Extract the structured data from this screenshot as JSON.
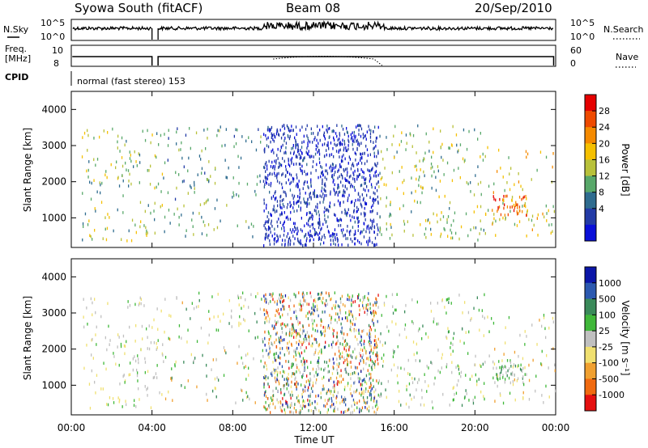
{
  "header": {
    "station": "Syowa South (fitACF)",
    "beam": "Beam 08",
    "date": "20/Sep/2010"
  },
  "panels": {
    "nsky_label": "N.Sky",
    "nsky_ticks": [
      "10^5",
      "10^0"
    ],
    "nsearch_label": "N.Search",
    "nsearch_ticks": [
      "10^5",
      "10^0"
    ],
    "freq_label_1": "Freq.",
    "freq_label_2": "[MHz]",
    "freq_ticks": [
      "10",
      "8"
    ],
    "nave_label": "Nave",
    "nave_ticks": [
      "60",
      "0"
    ],
    "cpid_label": "CPID",
    "cpid_text": "normal (fast stereo) 153"
  },
  "axes": {
    "ylabel": "Slant Range [km]",
    "yticks": [
      "4000",
      "3000",
      "2000",
      "1000"
    ],
    "xlabel": "Time UT",
    "xticks": [
      "00:00",
      "04:00",
      "08:00",
      "12:00",
      "16:00",
      "20:00",
      "00:00"
    ]
  },
  "colorbars": {
    "power": {
      "label": "Power [dB]",
      "ticks": [
        "28",
        "24",
        "20",
        "16",
        "12",
        "8",
        "4"
      ],
      "colors": [
        "#e50000",
        "#ee4a00",
        "#f58a00",
        "#f5c000",
        "#b8c13a",
        "#58a86a",
        "#2f6c8f",
        "#233ba6",
        "#0a10d8"
      ]
    },
    "velocity": {
      "label": "Velocity [m s⁻¹]",
      "ticks": [
        "1000",
        "500",
        "100",
        "25",
        "-25",
        "-100",
        "-500",
        "-1000"
      ],
      "colors": [
        "#0b16a8",
        "#2c59b0",
        "#3a8a5a",
        "#40b83a",
        "#c0c0c0",
        "#f0e070",
        "#f0a030",
        "#f06a10",
        "#e51010"
      ]
    }
  },
  "chart_data": [
    {
      "type": "line",
      "title": "",
      "series": [
        {
          "name": "N.Sky"
        },
        {
          "name": "N.Search"
        }
      ],
      "xlim": [
        0,
        24
      ],
      "note_scale": "log",
      "ylim_exponent": [
        0,
        5
      ]
    },
    {
      "type": "line",
      "series": [
        {
          "name": "Freq.",
          "approx_value": 9.5
        },
        {
          "name": "Nave"
        }
      ],
      "xlim": [
        0,
        24
      ]
    },
    {
      "type": "heatmap",
      "xlabel": "Time UT",
      "ylabel": "Slant Range [km]",
      "xlim": [
        0,
        24
      ],
      "ylim": [
        180,
        4500
      ],
      "colorbar": "Power [dB]",
      "value_range": [
        4,
        28
      ],
      "regions": [
        {
          "t": [
            0.5,
            4.5
          ],
          "range_km": [
            400,
            3500
          ],
          "density": 0.5,
          "value": [
            10,
            20
          ]
        },
        {
          "t": [
            4.5,
            9.5
          ],
          "range_km": [
            500,
            3600
          ],
          "density": 0.4,
          "value": [
            8,
            16
          ]
        },
        {
          "t": [
            9.5,
            15.2
          ],
          "range_km": [
            200,
            3600
          ],
          "density": 2.6,
          "value": [
            3,
            9
          ]
        },
        {
          "t": [
            15.2,
            20.5
          ],
          "range_km": [
            400,
            3600
          ],
          "density": 0.55,
          "value": [
            10,
            20
          ]
        },
        {
          "t": [
            20.8,
            22.6
          ],
          "range_km": [
            1100,
            1700
          ],
          "density": 2.0,
          "value": [
            20,
            28
          ]
        },
        {
          "t": [
            20.5,
            24
          ],
          "range_km": [
            500,
            3000
          ],
          "density": 0.4,
          "value": [
            12,
            22
          ]
        }
      ]
    },
    {
      "type": "heatmap",
      "xlabel": "Time UT",
      "ylabel": "Slant Range [km]",
      "xlim": [
        0,
        24
      ],
      "ylim": [
        180,
        4500
      ],
      "colorbar": "Velocity [m s⁻¹]",
      "value_range": [
        -1000,
        1000
      ],
      "regions": [
        {
          "t": [
            0.5,
            4.5
          ],
          "range_km": [
            400,
            3500
          ],
          "density": 0.5,
          "value": [
            -300,
            200
          ]
        },
        {
          "t": [
            4.5,
            9.5
          ],
          "range_km": [
            500,
            3600
          ],
          "density": 0.4,
          "value": [
            -500,
            500
          ]
        },
        {
          "t": [
            9.5,
            15.2
          ],
          "range_km": [
            200,
            3600
          ],
          "density": 2.6,
          "value": [
            -1000,
            1000
          ]
        },
        {
          "t": [
            15.2,
            20.5
          ],
          "range_km": [
            400,
            3600
          ],
          "density": 0.55,
          "value": [
            -300,
            500
          ]
        },
        {
          "t": [
            20.8,
            22.6
          ],
          "range_km": [
            1100,
            1700
          ],
          "density": 2.0,
          "value": [
            -100,
            600
          ]
        },
        {
          "t": [
            20.5,
            24
          ],
          "range_km": [
            500,
            3000
          ],
          "density": 0.4,
          "value": [
            -500,
            300
          ]
        }
      ]
    }
  ]
}
